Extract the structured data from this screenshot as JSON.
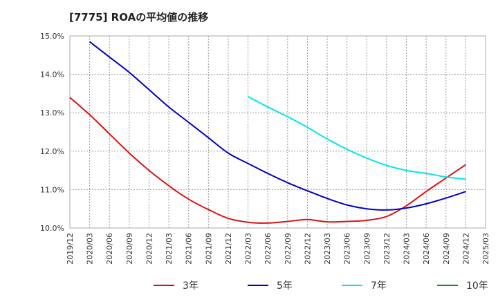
{
  "chart_data": {
    "type": "line",
    "title": "[7775]  ROAの平均値の推移",
    "xlabel": "",
    "ylabel": "",
    "ylim": [
      10.0,
      15.0
    ],
    "y_ticks": [
      "10.0%",
      "11.0%",
      "12.0%",
      "13.0%",
      "14.0%",
      "15.0%"
    ],
    "x": [
      "2019/12",
      "2020/03",
      "2020/06",
      "2020/09",
      "2020/12",
      "2021/03",
      "2021/06",
      "2021/09",
      "2021/12",
      "2022/03",
      "2022/06",
      "2022/09",
      "2022/12",
      "2023/03",
      "2023/06",
      "2023/09",
      "2023/12",
      "2024/03",
      "2024/06",
      "2024/09",
      "2024/12",
      "2025/03"
    ],
    "grid": true,
    "legend_position": "bottom",
    "series": [
      {
        "name": "3年",
        "color": "#dd1111",
        "values": [
          13.4,
          12.95,
          12.45,
          11.95,
          11.5,
          11.1,
          10.75,
          10.48,
          10.25,
          10.15,
          10.13,
          10.17,
          10.22,
          10.16,
          10.17,
          10.2,
          10.3,
          10.58,
          10.95,
          11.3,
          11.65,
          null
        ]
      },
      {
        "name": "5年",
        "color": "#0000cc",
        "values": [
          null,
          14.85,
          14.45,
          14.05,
          13.6,
          13.15,
          12.75,
          12.35,
          11.95,
          11.68,
          11.42,
          11.18,
          10.97,
          10.77,
          10.6,
          10.5,
          10.47,
          10.52,
          10.63,
          10.78,
          10.95,
          null
        ]
      },
      {
        "name": "7年",
        "color": "#00e5ee",
        "values": [
          null,
          null,
          null,
          null,
          null,
          null,
          null,
          null,
          null,
          13.42,
          13.15,
          12.9,
          12.62,
          12.32,
          12.05,
          11.82,
          11.63,
          11.5,
          11.42,
          11.33,
          11.27,
          null
        ]
      },
      {
        "name": "10年",
        "color": "#228b22",
        "values": [
          null,
          null,
          null,
          null,
          null,
          null,
          null,
          null,
          null,
          null,
          null,
          null,
          null,
          null,
          null,
          null,
          null,
          null,
          null,
          null,
          null,
          null
        ]
      }
    ]
  }
}
